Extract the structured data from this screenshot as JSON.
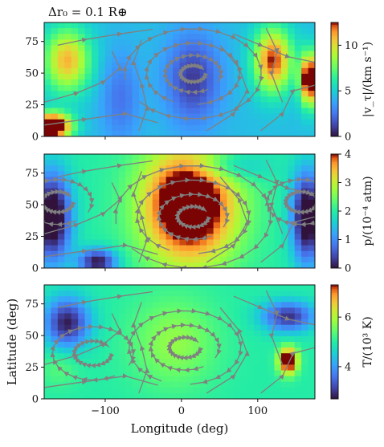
{
  "header": {
    "annotation": "Δr₀ = 0.1 R⊕"
  },
  "chart_data": [
    {
      "type": "heatmap",
      "quantity": "vt",
      "title": "",
      "xlabel": "",
      "ylabel": "",
      "xlim": [
        -180,
        175
      ],
      "ylim": [
        0,
        90
      ],
      "x_ticks": [
        -100,
        0,
        100
      ],
      "y_ticks": [
        0,
        25,
        50,
        75
      ],
      "y_tick_labels": [
        "0",
        "25",
        "50",
        "75"
      ],
      "overlay": "streamlines",
      "colormap": "turbo",
      "colorbar": {
        "label": "|v_τ|/(km s⁻¹)",
        "range": [
          0,
          12.5
        ],
        "ticks": [
          0,
          5,
          10
        ],
        "tick_labels": [
          "0",
          "5",
          "10"
        ]
      },
      "features": [
        {
          "lon": -170,
          "lat": 8,
          "value": 12.0,
          "sx": 25,
          "sy": 10
        },
        {
          "lon": 168,
          "lat": 45,
          "value": 10.5,
          "sx": 12,
          "sy": 20
        },
        {
          "lon": 120,
          "lat": 60,
          "value": 8.0,
          "sx": 25,
          "sy": 25
        },
        {
          "lon": -150,
          "lat": 60,
          "value": 6.5,
          "sx": 30,
          "sy": 25
        },
        {
          "lon": 15,
          "lat": 45,
          "value": -3.5,
          "sx": 35,
          "sy": 35
        },
        {
          "lon": -80,
          "lat": 30,
          "value": -2.0,
          "sx": 25,
          "sy": 35
        }
      ],
      "base_value": 4.5
    },
    {
      "type": "heatmap",
      "quantity": "p",
      "title": "",
      "xlabel": "",
      "ylabel": "",
      "xlim": [
        -180,
        175
      ],
      "ylim": [
        0,
        90
      ],
      "x_ticks": [
        -100,
        0,
        100
      ],
      "y_ticks": [
        0,
        25,
        50,
        75
      ],
      "y_tick_labels": [
        "0",
        "25",
        "50",
        "75"
      ],
      "overlay": "streamlines",
      "colormap": "turbo",
      "colorbar": {
        "label": "p/(10⁻⁴ atm)",
        "range": [
          0,
          4
        ],
        "ticks": [
          0,
          1,
          2,
          3,
          4
        ],
        "tick_labels": [
          "0",
          "1",
          "2",
          "3",
          "4"
        ]
      },
      "features": [
        {
          "lon": 10,
          "lat": 50,
          "value": 3.0,
          "sx": 60,
          "sy": 45
        },
        {
          "lon": -170,
          "lat": 40,
          "value": -2.5,
          "sx": 25,
          "sy": 35
        },
        {
          "lon": 165,
          "lat": 40,
          "value": -2.5,
          "sx": 20,
          "sy": 35
        },
        {
          "lon": -110,
          "lat": 5,
          "value": -2.0,
          "sx": 25,
          "sy": 10
        },
        {
          "lon": 60,
          "lat": 80,
          "value": -0.8,
          "sx": 50,
          "sy": 12
        }
      ],
      "base_value": 2.0
    },
    {
      "type": "heatmap",
      "quantity": "T",
      "title": "",
      "xlabel": "Longitude (deg)",
      "ylabel": "Latitude (deg)",
      "xlim": [
        -180,
        175
      ],
      "ylim": [
        0,
        90
      ],
      "x_ticks": [
        -100,
        0,
        100
      ],
      "x_tick_labels": [
        "−100",
        "0",
        "100"
      ],
      "y_ticks": [
        0,
        25,
        50,
        75
      ],
      "y_tick_labels": [
        "0",
        "25",
        "50",
        "75"
      ],
      "overlay": "streamlines",
      "colormap": "turbo",
      "colorbar": {
        "label": "T/(10³ K)",
        "range": [
          2.7,
          7.3
        ],
        "ticks": [
          4,
          6
        ],
        "tick_labels": [
          "4",
          "6"
        ]
      },
      "features": [
        {
          "lon": 140,
          "lat": 30,
          "value": 3.2,
          "sx": 12,
          "sy": 10
        },
        {
          "lon": -150,
          "lat": 60,
          "value": -2.2,
          "sx": 30,
          "sy": 20
        },
        {
          "lon": 140,
          "lat": 65,
          "value": -2.0,
          "sx": 35,
          "sy": 12
        },
        {
          "lon": -10,
          "lat": 45,
          "value": 0.8,
          "sx": 55,
          "sy": 35
        },
        {
          "lon": -160,
          "lat": 25,
          "value": 0.4,
          "sx": 25,
          "sy": 15
        }
      ],
      "base_value": 5.0
    }
  ],
  "colors": {
    "streamline": "#808080",
    "axis": "#111111"
  }
}
